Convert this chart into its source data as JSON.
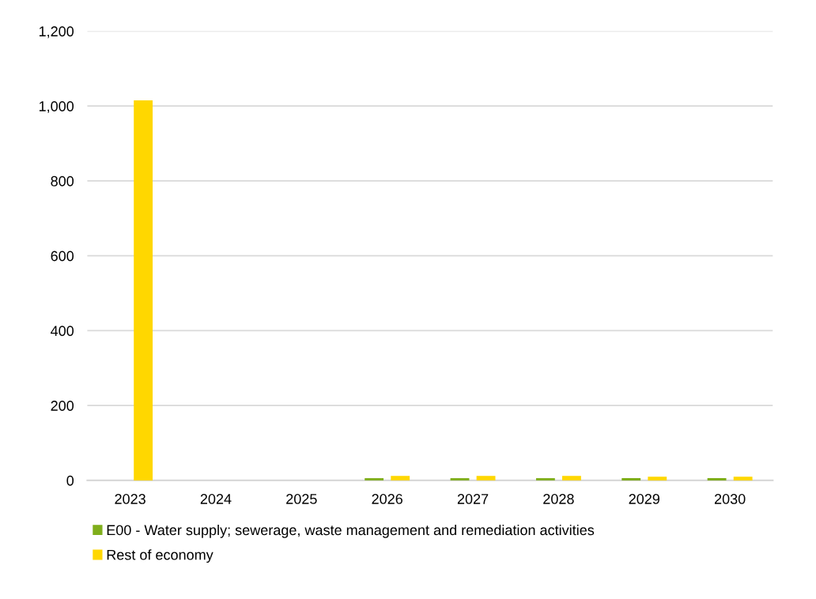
{
  "chart_data": {
    "type": "bar",
    "categories": [
      "2023",
      "2024",
      "2025",
      "2026",
      "2027",
      "2028",
      "2029",
      "2030"
    ],
    "series": [
      {
        "name": "E00 - Water supply; sewerage, waste management and remediation activities",
        "color": "#7fae1b",
        "values": [
          0,
          0,
          0,
          6,
          6,
          6,
          6,
          6
        ]
      },
      {
        "name": "Rest of economy",
        "color": "#ffd700",
        "values": [
          1015,
          0,
          0,
          12,
          12,
          12,
          10,
          10
        ]
      }
    ],
    "ylim": [
      0,
      1200
    ],
    "yticks": [
      {
        "value": 0,
        "label": "0"
      },
      {
        "value": 200,
        "label": "200"
      },
      {
        "value": 400,
        "label": "400"
      },
      {
        "value": 600,
        "label": "600"
      },
      {
        "value": 800,
        "label": "800"
      },
      {
        "value": 1000,
        "label": "1,000"
      },
      {
        "value": 1200,
        "label": "1,200"
      }
    ],
    "grid": "y",
    "legend": "bottom"
  }
}
